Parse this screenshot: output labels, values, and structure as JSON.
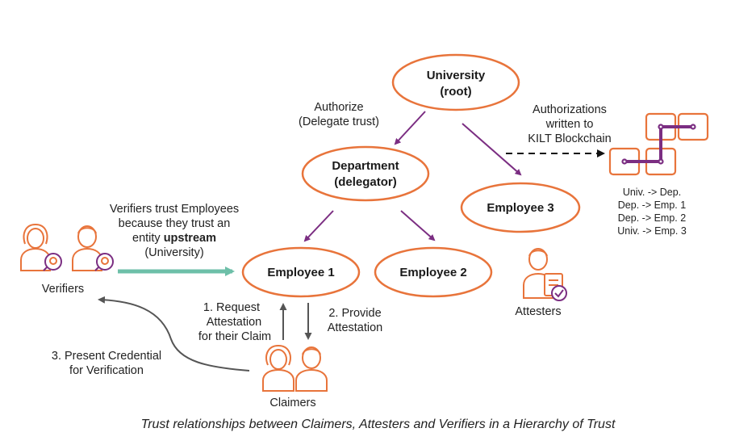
{
  "nodes": {
    "university": [
      "University",
      "(root)"
    ],
    "department": [
      "Department",
      "(delegator)"
    ],
    "employee1": "Employee 1",
    "employee2": "Employee 2",
    "employee3": "Employee 3"
  },
  "labels": {
    "authorize": [
      "Authorize",
      "(Delegate trust)"
    ],
    "authorizations": [
      "Authorizations",
      "written to",
      "KILT Blockchain"
    ],
    "verifiers_trust": [
      "Verifiers trust Employees",
      "because they trust an"
    ],
    "verifiers_trust_prefix": "entity ",
    "verifiers_trust_bold": "upstream",
    "verifiers_trust_last": "(University)",
    "request": [
      "1. Request",
      "Attestation",
      "for their Claim"
    ],
    "provide": [
      "2. Provide",
      "Attestation"
    ],
    "present": [
      "3. Present Credential",
      "for Verification"
    ]
  },
  "chain_entries": [
    "Univ. -> Dep.",
    "Dep. -> Emp. 1",
    "Dep. -> Emp. 2",
    "Univ. -> Emp. 3"
  ],
  "groups": {
    "verifiers": "Verifiers",
    "attesters": "Attesters",
    "claimers": "Claimers"
  },
  "caption": "Trust relationships between Claimers, Attesters and Verifiers in a Hierarchy of Trust",
  "colors": {
    "orange": "#E8743B",
    "purple": "#7B2E82",
    "teal": "#6DBFA8",
    "gray": "#555555"
  }
}
